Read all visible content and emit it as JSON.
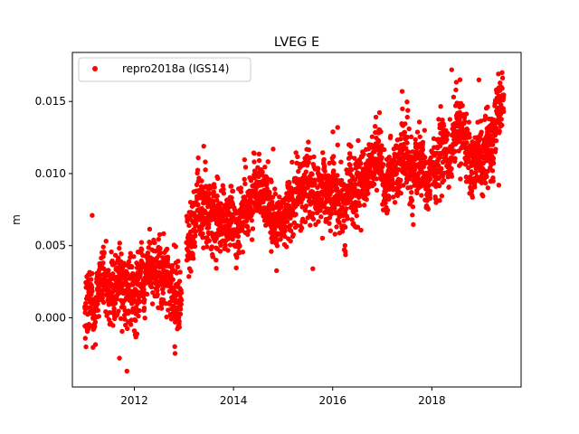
{
  "chart_data": {
    "type": "scatter",
    "title": "LVEG E",
    "xlabel": "",
    "ylabel": "m",
    "xlim": [
      2010.75,
      2019.8
    ],
    "ylim": [
      -0.0048,
      0.0184
    ],
    "x_ticks": [
      2012,
      2014,
      2016,
      2018
    ],
    "x_tick_labels": [
      "2012",
      "2014",
      "2016",
      "2018"
    ],
    "y_ticks": [
      0.0,
      0.005,
      0.01,
      0.015
    ],
    "y_tick_labels": [
      "0.000",
      "0.005",
      "0.010",
      "0.015"
    ],
    "grid": false,
    "legend_position": "top-left",
    "series": [
      {
        "name": "repro2018a (IGS14)",
        "color": "#ff0000",
        "marker": "circle",
        "x_range": [
          2011.0,
          2019.45
        ],
        "trend_points": [
          {
            "x": 2011.0,
            "y": 0.0016
          },
          {
            "x": 2012.0,
            "y": 0.0022
          },
          {
            "x": 2012.95,
            "y": 0.0028
          },
          {
            "x": 2013.05,
            "y": 0.0066
          },
          {
            "x": 2014.0,
            "y": 0.0068
          },
          {
            "x": 2016.0,
            "y": 0.0085
          },
          {
            "x": 2018.0,
            "y": 0.0112
          },
          {
            "x": 2019.45,
            "y": 0.0125
          }
        ],
        "sample_points": [
          {
            "x": 2011.15,
            "y": 0.0071
          },
          {
            "x": 2011.85,
            "y": -0.0037
          },
          {
            "x": 2011.7,
            "y": -0.0028
          },
          {
            "x": 2013.4,
            "y": 0.0119
          },
          {
            "x": 2014.8,
            "y": 0.0117
          },
          {
            "x": 2016.1,
            "y": 0.0132
          },
          {
            "x": 2015.6,
            "y": 0.0034
          },
          {
            "x": 2017.4,
            "y": 0.0157
          },
          {
            "x": 2018.4,
            "y": 0.0172
          },
          {
            "x": 2018.95,
            "y": 0.0165
          },
          {
            "x": 2019.4,
            "y": 0.016
          },
          {
            "x": 2019.35,
            "y": 0.0092
          }
        ]
      }
    ]
  }
}
